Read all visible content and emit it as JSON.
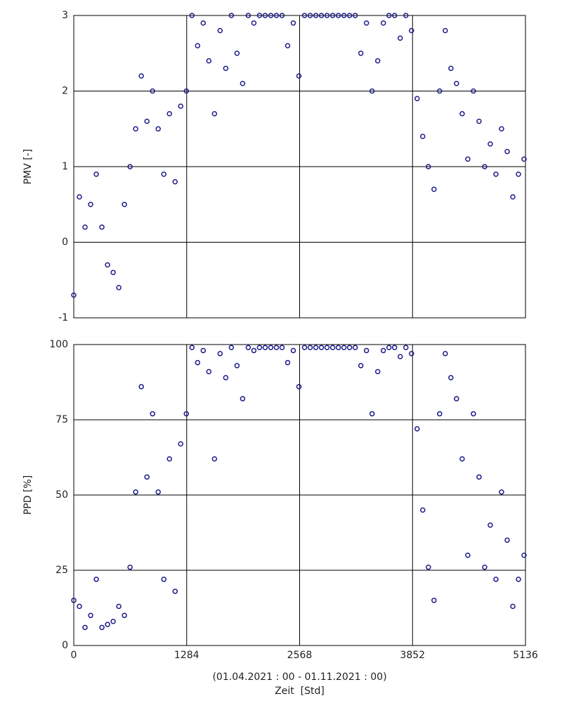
{
  "chart_data": [
    {
      "type": "scatter",
      "ylabel": "PMV [-]",
      "color": "#1c1c8a",
      "grid": true,
      "xtick_labels": false,
      "xlim": [
        0,
        5136
      ],
      "xticks": [
        0,
        1284,
        2568,
        3852,
        5136
      ],
      "ylim": [
        -1,
        3
      ],
      "yticks": [
        -1,
        0,
        1,
        2,
        3
      ],
      "x": [
        0,
        64,
        128,
        192,
        256,
        320,
        384,
        448,
        512,
        576,
        640,
        704,
        768,
        832,
        896,
        960,
        1024,
        1088,
        1152,
        1216,
        1280,
        1344,
        1408,
        1472,
        1536,
        1600,
        1664,
        1728,
        1792,
        1856,
        1920,
        1984,
        2048,
        2112,
        2176,
        2240,
        2304,
        2368,
        2432,
        2496,
        2560,
        2624,
        2688,
        2752,
        2816,
        2880,
        2944,
        3008,
        3072,
        3136,
        3200,
        3264,
        3328,
        3392,
        3456,
        3520,
        3584,
        3648,
        3712,
        3776,
        3840,
        3904,
        3968,
        4032,
        4096,
        4160,
        4224,
        4288,
        4352,
        4416,
        4480,
        4544,
        4608,
        4672,
        4736,
        4800,
        4864,
        4928,
        4992,
        5056,
        5120
      ],
      "values": [
        -0.7,
        0.6,
        0.2,
        0.5,
        0.9,
        0.2,
        -0.3,
        -0.4,
        -0.6,
        0.5,
        1.0,
        1.5,
        2.2,
        1.6,
        2.0,
        1.5,
        0.9,
        1.7,
        0.8,
        1.8,
        2.0,
        3.0,
        2.6,
        2.9,
        2.4,
        1.7,
        2.8,
        2.3,
        3.0,
        2.5,
        2.1,
        3.0,
        2.9,
        3.0,
        3.0,
        3.0,
        3.0,
        3.0,
        2.6,
        2.9,
        2.2,
        3.0,
        3.0,
        3.0,
        3.0,
        3.0,
        3.0,
        3.0,
        3.0,
        3.0,
        3.0,
        2.5,
        2.9,
        2.0,
        2.4,
        2.9,
        3.0,
        3.0,
        2.7,
        3.0,
        2.8,
        1.9,
        1.4,
        1.0,
        0.7,
        2.0,
        2.8,
        2.3,
        2.1,
        1.7,
        1.1,
        2.0,
        1.6,
        1.0,
        1.3,
        0.9,
        1.5,
        1.2,
        0.6,
        0.9,
        1.1
      ]
    },
    {
      "type": "scatter",
      "ylabel": "PPD [%]",
      "color": "#1c1c8a",
      "grid": true,
      "xtick_labels": true,
      "period": "(01.04.2021 : 00 - 01.11.2021 : 00)",
      "xlabel": "Zeit  [Std]",
      "xlim": [
        0,
        5136
      ],
      "xticks": [
        0,
        1284,
        2568,
        3852,
        5136
      ],
      "ylim": [
        0,
        100
      ],
      "yticks": [
        0,
        25,
        50,
        75,
        100
      ],
      "x": [
        0,
        64,
        128,
        192,
        256,
        320,
        384,
        448,
        512,
        576,
        640,
        704,
        768,
        832,
        896,
        960,
        1024,
        1088,
        1152,
        1216,
        1280,
        1344,
        1408,
        1472,
        1536,
        1600,
        1664,
        1728,
        1792,
        1856,
        1920,
        1984,
        2048,
        2112,
        2176,
        2240,
        2304,
        2368,
        2432,
        2496,
        2560,
        2624,
        2688,
        2752,
        2816,
        2880,
        2944,
        3008,
        3072,
        3136,
        3200,
        3264,
        3328,
        3392,
        3456,
        3520,
        3584,
        3648,
        3712,
        3776,
        3840,
        3904,
        3968,
        4032,
        4096,
        4160,
        4224,
        4288,
        4352,
        4416,
        4480,
        4544,
        4608,
        4672,
        4736,
        4800,
        4864,
        4928,
        4992,
        5056,
        5120
      ],
      "values": [
        15,
        13,
        6,
        10,
        22,
        6,
        7,
        8,
        13,
        10,
        26,
        51,
        86,
        56,
        77,
        51,
        22,
        62,
        18,
        67,
        77,
        99,
        94,
        98,
        91,
        62,
        97,
        89,
        99,
        93,
        82,
        99,
        98,
        99,
        99,
        99,
        99,
        99,
        94,
        98,
        86,
        99,
        99,
        99,
        99,
        99,
        99,
        99,
        99,
        99,
        99,
        93,
        98,
        77,
        91,
        98,
        99,
        99,
        96,
        99,
        97,
        72,
        45,
        26,
        15,
        77,
        97,
        89,
        82,
        62,
        30,
        77,
        56,
        26,
        40,
        22,
        51,
        35,
        13,
        22,
        30
      ]
    }
  ]
}
